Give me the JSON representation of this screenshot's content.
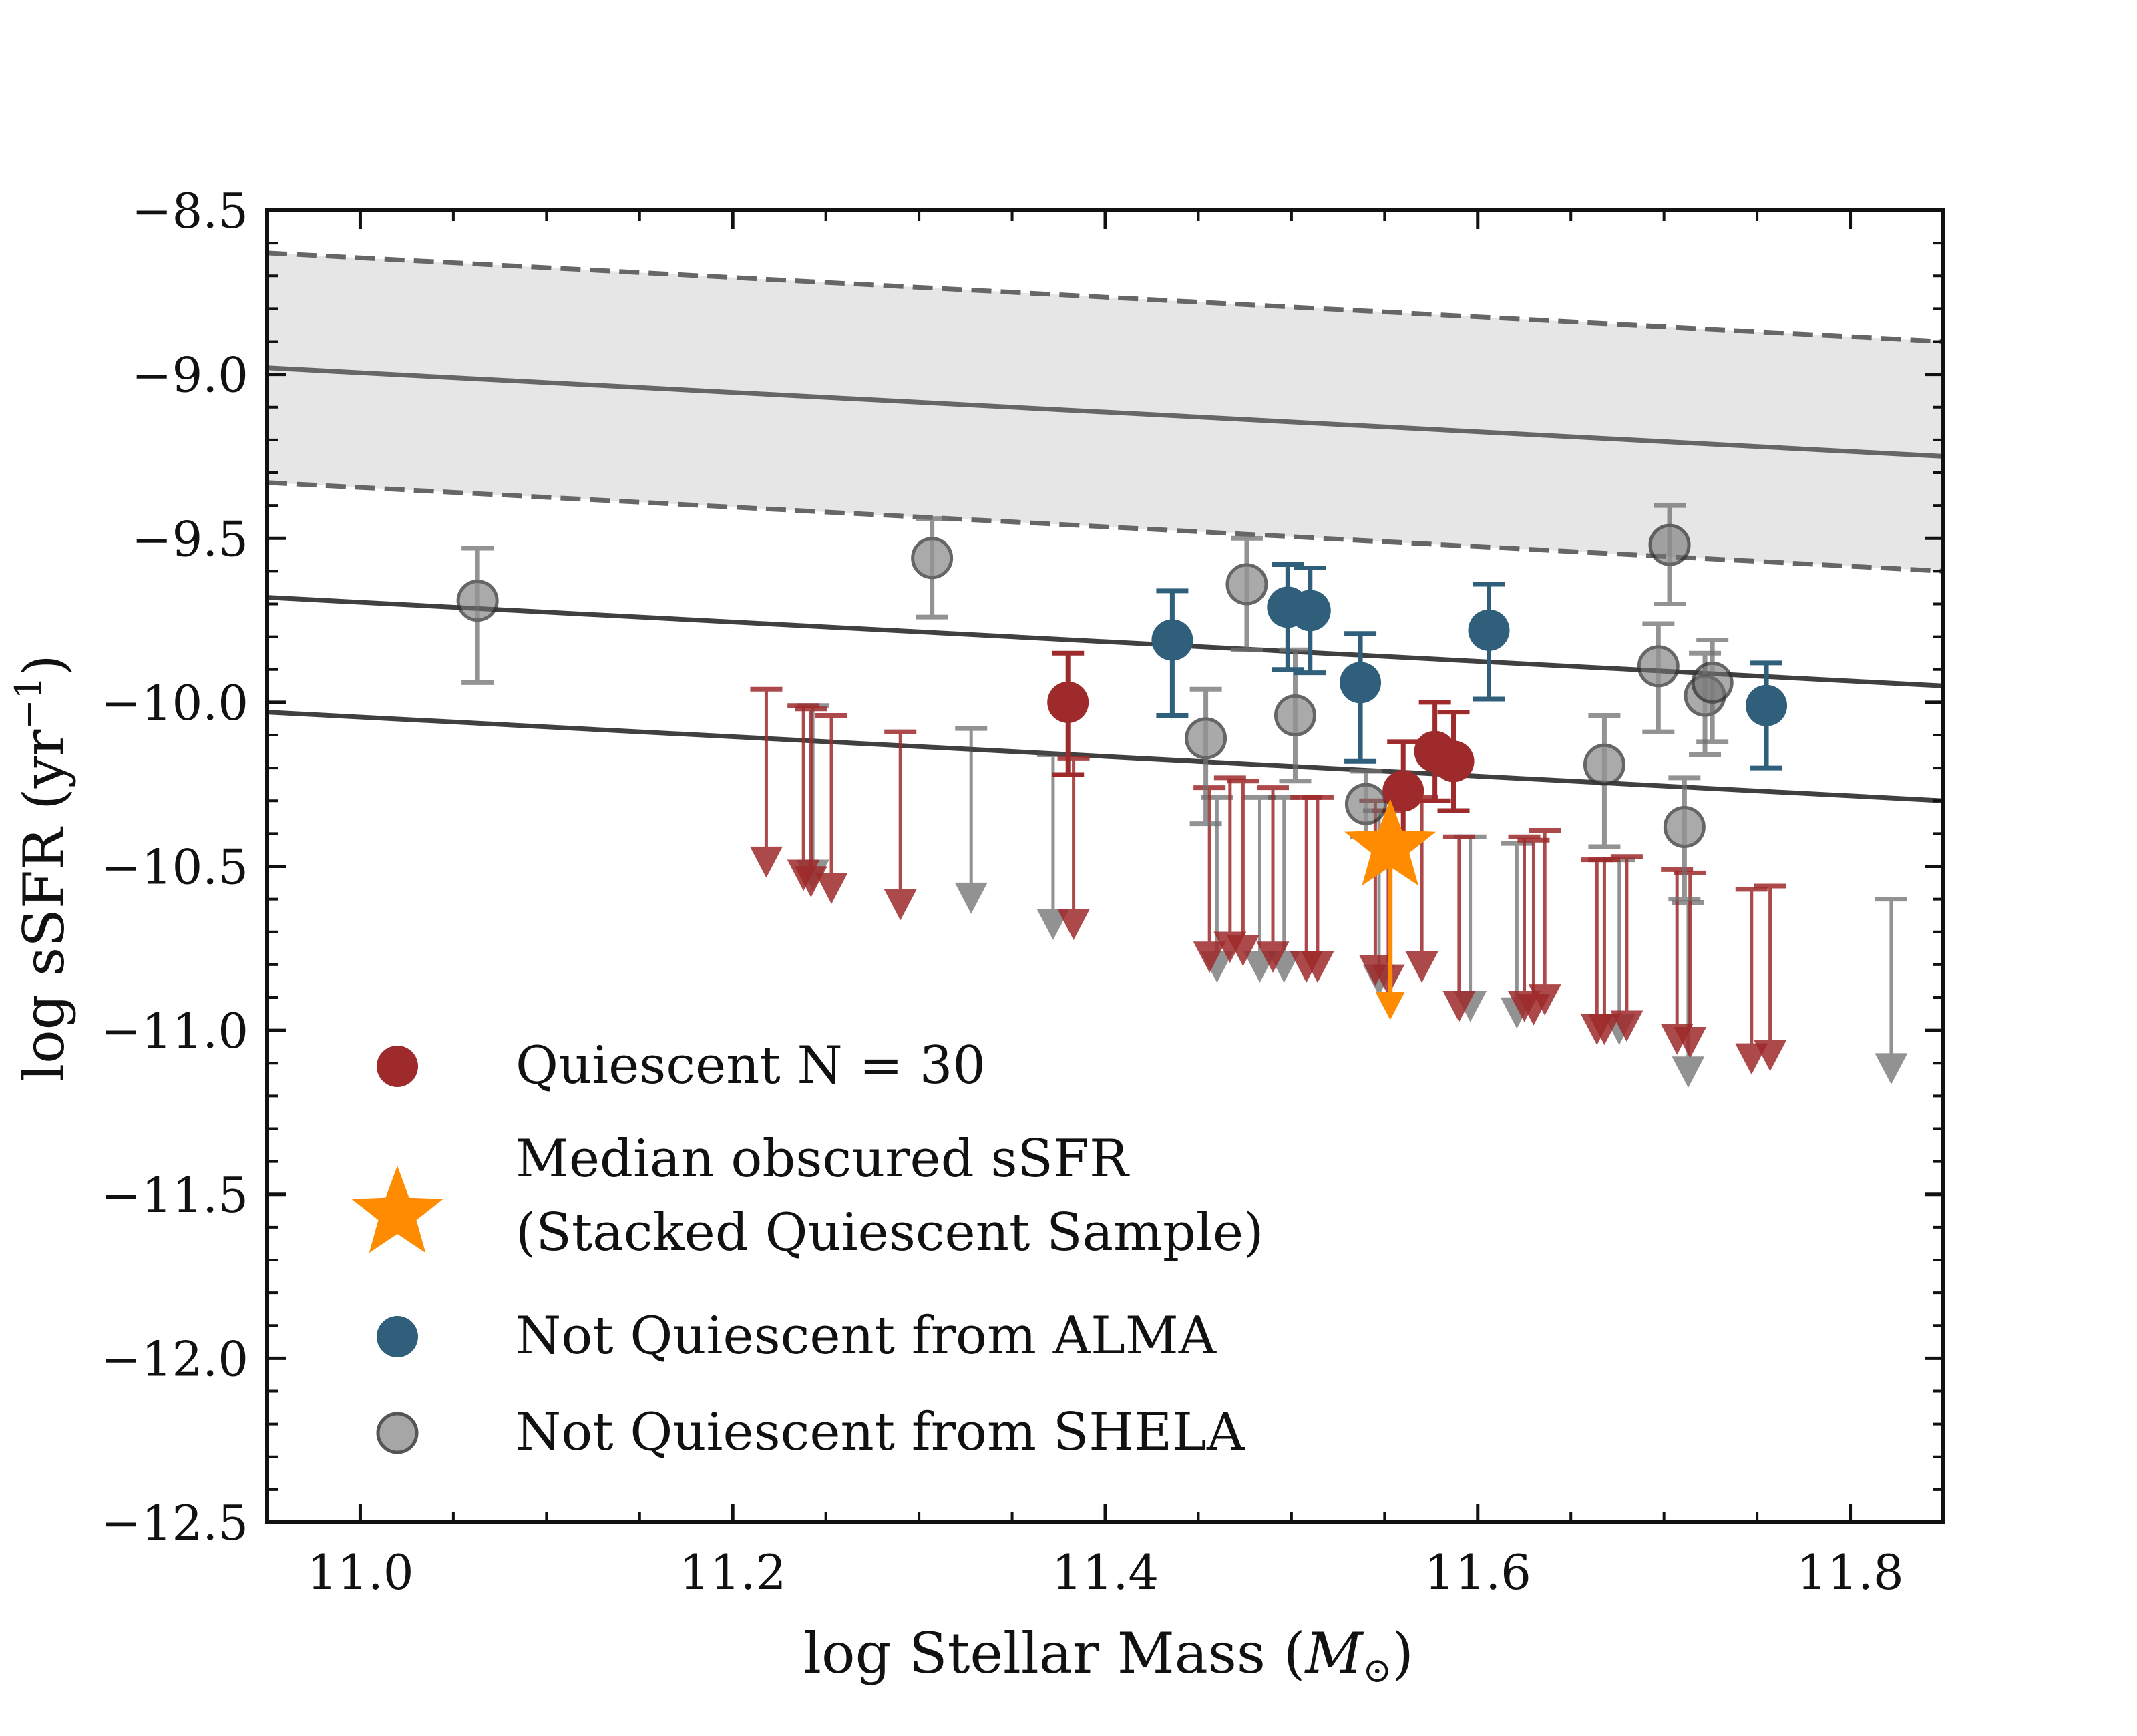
{
  "chart_data": {
    "type": "scatter",
    "title": "",
    "xlabel": "log Stellar Mass (M⊙)",
    "ylabel": "log sSFR (yr⁻¹)",
    "xlim": [
      10.95,
      11.85
    ],
    "ylim": [
      -12.5,
      -8.5
    ],
    "x_ticks": [
      "11.0",
      "11.2",
      "11.4",
      "11.6",
      "11.8"
    ],
    "y_ticks": [
      "−8.5",
      "−9.0",
      "−9.5",
      "−10.0",
      "−10.5",
      "−11.0",
      "−11.5",
      "−12.0",
      "−12.5"
    ],
    "legend_position": "lower-left",
    "colors": {
      "quiescent": "#9e2a2b",
      "star": "#ff8c00",
      "alma": "#2f5f7a",
      "shela": "#808080",
      "band_fill": "#e6e6e6",
      "ms_line": "#666666",
      "threshold_line": "#404040"
    },
    "main_sequence": {
      "center": [
        [
          10.95,
          -8.98
        ],
        [
          11.85,
          -9.25
        ]
      ],
      "upper": [
        [
          10.95,
          -8.63
        ],
        [
          11.85,
          -8.9
        ]
      ],
      "lower": [
        [
          10.95,
          -9.33
        ],
        [
          11.85,
          -9.6
        ]
      ]
    },
    "threshold_lines": [
      {
        "name": "upper",
        "points": [
          [
            10.95,
            -9.68
          ],
          [
            11.85,
            -9.95
          ]
        ]
      },
      {
        "name": "lower",
        "points": [
          [
            10.95,
            -10.03
          ],
          [
            11.85,
            -10.3
          ]
        ]
      }
    ],
    "series": [
      {
        "name": "Quiescent N = 30",
        "points": [
          {
            "x": 11.38,
            "y": -10.0,
            "err_up": 0.15,
            "err_down": 0.22
          },
          {
            "x": 11.56,
            "y": -10.27,
            "err_up": 0.15,
            "err_down": 0.15
          },
          {
            "x": 11.577,
            "y": -10.15,
            "err_up": 0.15,
            "err_down": 0.15
          },
          {
            "x": 11.587,
            "y": -10.18,
            "err_up": 0.15,
            "err_down": 0.15
          }
        ],
        "upper_limits": [
          {
            "x": 11.218,
            "y": -9.96,
            "y_end": -10.52
          },
          {
            "x": 11.242,
            "y": -10.02,
            "y_end": -10.58
          },
          {
            "x": 11.253,
            "y": -10.04,
            "y_end": -10.6
          },
          {
            "x": 11.29,
            "y": -10.09,
            "y_end": -10.65
          },
          {
            "x": 11.383,
            "y": -10.17,
            "y_end": -10.71
          },
          {
            "x": 11.456,
            "y": -10.26,
            "y_end": -10.81
          },
          {
            "x": 11.467,
            "y": -10.23,
            "y_end": -10.78
          },
          {
            "x": 11.474,
            "y": -10.24,
            "y_end": -10.79
          },
          {
            "x": 11.49,
            "y": -10.26,
            "y_end": -10.81
          },
          {
            "x": 11.508,
            "y": -10.29,
            "y_end": -10.84
          },
          {
            "x": 11.514,
            "y": -10.29,
            "y_end": -10.84
          },
          {
            "x": 11.552,
            "y": -10.33,
            "y_end": -10.88
          },
          {
            "x": 11.57,
            "y": -10.29,
            "y_end": -10.84
          },
          {
            "x": 11.59,
            "y": -10.41,
            "y_end": -10.96
          },
          {
            "x": 11.625,
            "y": -10.41,
            "y_end": -10.96
          },
          {
            "x": 11.63,
            "y": -10.42,
            "y_end": -10.97
          },
          {
            "x": 11.636,
            "y": -10.39,
            "y_end": -10.94
          },
          {
            "x": 11.664,
            "y": -10.48,
            "y_end": -11.03
          },
          {
            "x": 11.668,
            "y": -10.48,
            "y_end": -11.03
          },
          {
            "x": 11.68,
            "y": -10.47,
            "y_end": -11.02
          },
          {
            "x": 11.707,
            "y": -10.51,
            "y_end": -11.06
          },
          {
            "x": 11.714,
            "y": -10.52,
            "y_end": -11.07
          },
          {
            "x": 11.747,
            "y": -10.57,
            "y_end": -11.12
          },
          {
            "x": 11.757,
            "y": -10.56,
            "y_end": -11.11
          },
          {
            "x": 11.545,
            "y": -10.3,
            "y_end": -10.85
          },
          {
            "x": 11.238,
            "y": -10.01,
            "y_end": -10.56
          }
        ]
      },
      {
        "name": "Median obscured sSFR (Stacked Quiescent Sample)",
        "points": [
          {
            "x": 11.553,
            "y": -10.44,
            "err_up": 0.1,
            "err_down": 0.52
          }
        ]
      },
      {
        "name": "Not Quiescent from ALMA",
        "points": [
          {
            "x": 11.436,
            "y": -9.81,
            "err_up": 0.15,
            "err_down": 0.23
          },
          {
            "x": 11.498,
            "y": -9.71,
            "err_up": 0.13,
            "err_down": 0.19
          },
          {
            "x": 11.51,
            "y": -9.72,
            "err_up": 0.13,
            "err_down": 0.19
          },
          {
            "x": 11.537,
            "y": -9.94,
            "err_up": 0.15,
            "err_down": 0.24
          },
          {
            "x": 11.606,
            "y": -9.78,
            "err_up": 0.14,
            "err_down": 0.21
          },
          {
            "x": 11.755,
            "y": -10.01,
            "err_up": 0.13,
            "err_down": 0.19
          }
        ]
      },
      {
        "name": "Not Quiescent from SHELA",
        "points": [
          {
            "x": 11.063,
            "y": -9.69,
            "err_up": 0.16,
            "err_down": 0.25
          },
          {
            "x": 11.307,
            "y": -9.56,
            "err_up": 0.12,
            "err_down": 0.18
          },
          {
            "x": 11.476,
            "y": -9.64,
            "err_up": 0.14,
            "err_down": 0.2
          },
          {
            "x": 11.454,
            "y": -10.11,
            "err_up": 0.15,
            "err_down": 0.26
          },
          {
            "x": 11.502,
            "y": -10.04,
            "err_up": 0.2,
            "err_down": 0.2
          },
          {
            "x": 11.54,
            "y": -10.31,
            "err_up": 0.1,
            "err_down": 0.1
          },
          {
            "x": 11.668,
            "y": -10.19,
            "err_up": 0.15,
            "err_down": 0.25
          },
          {
            "x": 11.697,
            "y": -9.89,
            "err_up": 0.13,
            "err_down": 0.2
          },
          {
            "x": 11.703,
            "y": -9.52,
            "err_up": 0.12,
            "err_down": 0.18
          },
          {
            "x": 11.711,
            "y": -10.38,
            "err_up": 0.15,
            "err_down": 0.22
          },
          {
            "x": 11.722,
            "y": -9.98,
            "err_up": 0.13,
            "err_down": 0.18
          },
          {
            "x": 11.726,
            "y": -9.94,
            "err_up": 0.13,
            "err_down": 0.18
          }
        ],
        "upper_limits": [
          {
            "x": 11.243,
            "y": -10.01,
            "y_end": -10.56
          },
          {
            "x": 11.328,
            "y": -10.08,
            "y_end": -10.63
          },
          {
            "x": 11.372,
            "y": -10.16,
            "y_end": -10.71
          },
          {
            "x": 11.46,
            "y": -10.29,
            "y_end": -10.84
          },
          {
            "x": 11.483,
            "y": -10.29,
            "y_end": -10.84
          },
          {
            "x": 11.496,
            "y": -10.29,
            "y_end": -10.84
          },
          {
            "x": 11.547,
            "y": -10.33,
            "y_end": -10.88
          },
          {
            "x": 11.596,
            "y": -10.41,
            "y_end": -10.96
          },
          {
            "x": 11.621,
            "y": -10.43,
            "y_end": -10.98
          },
          {
            "x": 11.676,
            "y": -10.48,
            "y_end": -11.03
          },
          {
            "x": 11.713,
            "y": -10.61,
            "y_end": -11.16
          },
          {
            "x": 11.822,
            "y": -10.6,
            "y_end": -11.15
          }
        ]
      }
    ]
  },
  "legend": {
    "quiescent": "Quiescent N = 30",
    "star_line1": "Median obscured sSFR",
    "star_line2": "(Stacked Quiescent Sample)",
    "alma": "Not Quiescent from ALMA",
    "shela": "Not Quiescent from SHELA"
  },
  "axes": {
    "xlabel_main": "log Stellar Mass (",
    "xlabel_sym": "M",
    "xlabel_sub": "⊙",
    "xlabel_close": ")",
    "ylabel_main": "log sSFR (yr",
    "ylabel_sup": "−1",
    "ylabel_close": ")"
  }
}
